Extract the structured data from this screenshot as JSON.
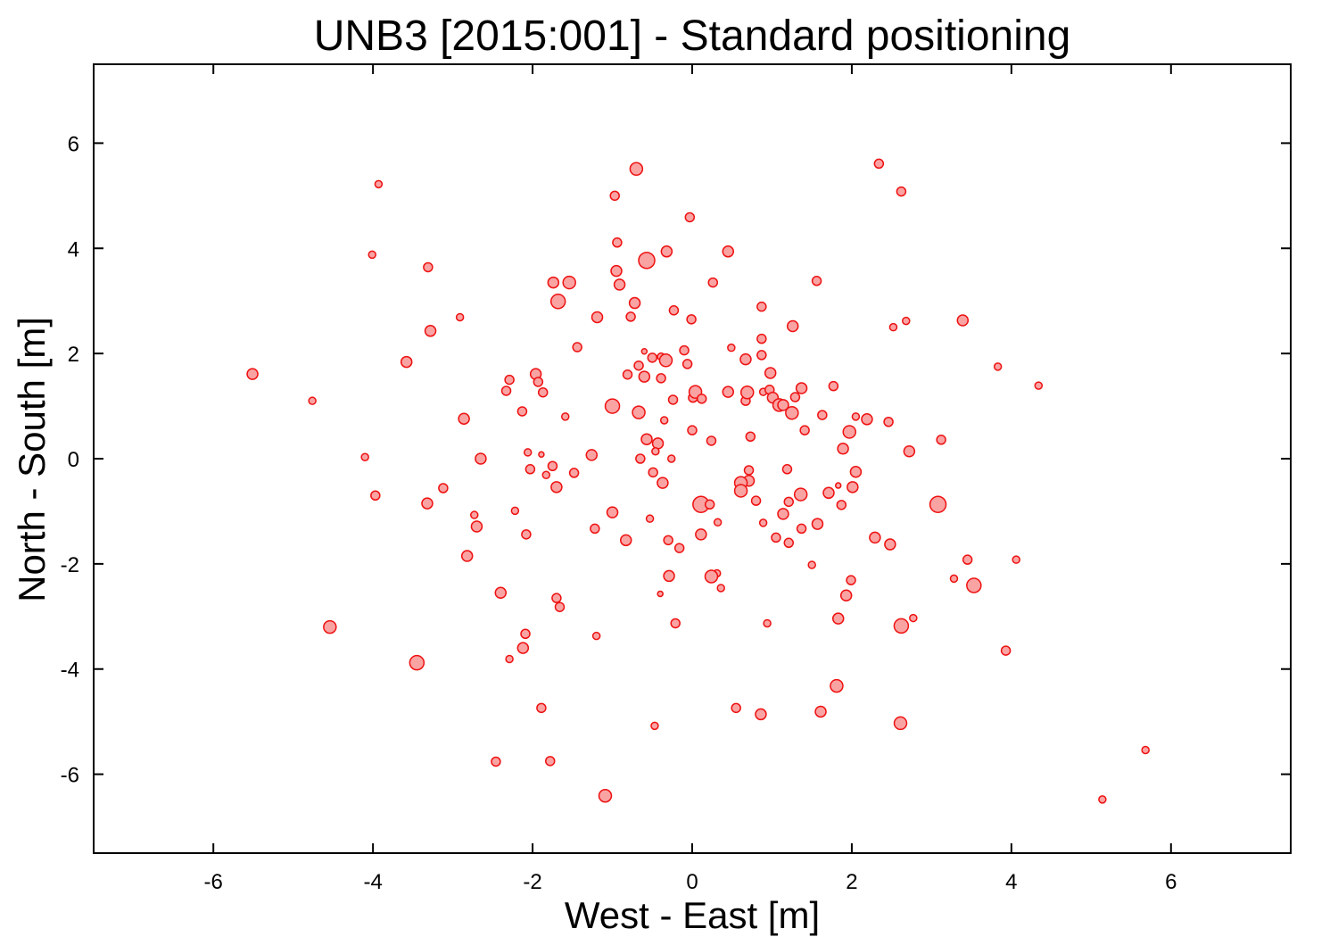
{
  "chart_data": {
    "type": "scatter",
    "title": "UNB3 [2015:001] - Standard positioning",
    "x_label": "West - East [m]",
    "y_label": "North - South [m]",
    "xlim": [
      -7.5,
      7.5
    ],
    "ylim": [
      -7.5,
      7.5
    ],
    "xticks": [
      -6,
      -4,
      -2,
      0,
      2,
      4,
      6
    ],
    "yticks": [
      -6,
      -4,
      -2,
      0,
      2,
      4,
      6
    ],
    "color": "#f9a3a3",
    "edge_color": "#ee1111",
    "x": [
      -5.51,
      -4.76,
      -3.93,
      -4.01,
      -4.1,
      -3.97,
      -4.54,
      -3.45,
      -3.31,
      -3.28,
      -3.58,
      -2.91,
      -2.86,
      -2.65,
      -3.32,
      -3.12,
      -2.73,
      -2.7,
      -2.82,
      -2.4,
      -2.29,
      -2.33,
      -2.13,
      -1.96,
      -1.93,
      -1.87,
      -2.06,
      -1.89,
      -2.03,
      -1.83,
      -1.75,
      -1.7,
      -2.22,
      -2.08,
      -1.59,
      -1.48,
      -1.26,
      -1.22,
      -1.0,
      -0.83,
      -1.0,
      -0.67,
      -1.74,
      -1.54,
      -1.68,
      -1.44,
      -1.19,
      -0.97,
      -0.94,
      -0.95,
      -0.91,
      -0.7,
      -0.57,
      -0.72,
      -0.77,
      -0.81,
      -0.67,
      -0.6,
      -0.6,
      -0.5,
      -0.39,
      -0.32,
      -0.03,
      -0.23,
      -0.1,
      -0.06,
      -0.39,
      -0.33,
      -0.24,
      -0.35,
      -0.57,
      -0.43,
      -0.46,
      -0.65,
      -0.49,
      -0.37,
      -0.26,
      0.0,
      0.01,
      0.04,
      0.12,
      -0.01,
      0.26,
      0.45,
      0.49,
      0.67,
      0.45,
      0.67,
      0.69,
      0.73,
      0.24,
      0.71,
      0.71,
      0.61,
      0.61,
      0.8,
      0.11,
      0.22,
      0.32,
      0.11,
      -0.53,
      -0.3,
      -0.16,
      -0.29,
      -0.4,
      0.31,
      0.24,
      0.36,
      -0.21,
      -1.2,
      -1.7,
      -1.66,
      -2.09,
      -2.12,
      -2.29,
      -1.89,
      -0.47,
      -2.46,
      -1.78,
      -1.09,
      0.55,
      0.86,
      1.61,
      1.81,
      2.61,
      0.94,
      0.89,
      0.87,
      0.87,
      0.87,
      0.89,
      0.97,
      0.98,
      1.01,
      1.09,
      1.14,
      1.25,
      1.29,
      1.37,
      1.26,
      1.56,
      1.41,
      1.63,
      1.19,
      1.21,
      1.14,
      1.05,
      1.21,
      1.37,
      1.36,
      1.57,
      1.5,
      1.71,
      1.83,
      1.87,
      1.77,
      1.89,
      1.97,
      2.05,
      2.19,
      2.05,
      2.01,
      2.29,
      2.48,
      1.99,
      1.93,
      1.83,
      2.62,
      2.77,
      2.34,
      2.62,
      2.52,
      2.68,
      2.46,
      2.72,
      3.39,
      3.12,
      3.08,
      3.28,
      3.45,
      3.53,
      3.83,
      4.34,
      4.06,
      3.93,
      5.68,
      5.14
    ],
    "y": [
      1.61,
      1.1,
      5.22,
      3.88,
      0.03,
      -0.7,
      -3.2,
      -3.88,
      3.64,
      2.43,
      1.84,
      2.69,
      0.76,
      0.0,
      -0.85,
      -0.56,
      -1.07,
      -1.29,
      -1.85,
      -2.55,
      1.5,
      1.29,
      0.9,
      1.61,
      1.46,
      1.26,
      0.12,
      0.08,
      -0.2,
      -0.31,
      -0.14,
      -0.54,
      -0.99,
      -1.44,
      0.8,
      -0.27,
      0.07,
      -1.33,
      -1.02,
      -1.55,
      1.0,
      0.88,
      3.35,
      3.35,
      2.99,
      2.12,
      2.69,
      5.0,
      4.11,
      3.57,
      3.31,
      5.51,
      3.77,
      2.96,
      2.7,
      1.6,
      1.77,
      1.56,
      2.04,
      1.92,
      1.94,
      3.94,
      4.59,
      2.82,
      2.06,
      1.8,
      1.53,
      1.87,
      1.12,
      0.73,
      0.37,
      0.29,
      0.14,
      0.0,
      -0.26,
      -0.46,
      0.0,
      0.54,
      1.16,
      1.27,
      1.14,
      2.65,
      3.35,
      3.94,
      2.11,
      1.89,
      1.27,
      1.1,
      1.26,
      0.42,
      0.34,
      -0.22,
      -0.42,
      -0.46,
      -0.61,
      -0.8,
      -0.87,
      -0.87,
      -1.21,
      -1.44,
      -1.14,
      -1.55,
      -1.7,
      -2.23,
      -2.57,
      -2.18,
      -2.24,
      -2.46,
      -3.13,
      -3.37,
      -2.65,
      -2.82,
      -3.33,
      -3.6,
      -3.81,
      -4.74,
      -5.08,
      -5.76,
      -5.75,
      -6.41,
      -4.74,
      -4.86,
      -4.81,
      -4.32,
      -5.03,
      -3.13,
      -1.22,
      2.89,
      2.28,
      1.97,
      1.27,
      1.31,
      1.63,
      1.16,
      1.02,
      1.02,
      0.87,
      1.17,
      1.34,
      2.52,
      3.38,
      0.54,
      0.83,
      -0.2,
      -0.82,
      -1.05,
      -1.5,
      -1.6,
      -1.33,
      -0.68,
      -1.24,
      -2.02,
      -0.65,
      -0.51,
      -0.88,
      1.38,
      0.19,
      0.51,
      0.8,
      0.75,
      -0.25,
      -0.54,
      -1.5,
      -1.63,
      -2.31,
      -2.6,
      -3.04,
      -3.18,
      -3.03,
      5.61,
      5.08,
      2.5,
      2.62,
      0.7,
      0.14,
      2.63,
      0.36,
      -0.87,
      -2.28,
      -1.92,
      -2.41,
      1.75,
      1.39,
      -1.92,
      -3.65,
      -5.54,
      -6.48
    ],
    "sizes": [
      6,
      4,
      4,
      4,
      4,
      5,
      7,
      8,
      5,
      6,
      6,
      4,
      6,
      6,
      6,
      5,
      4,
      6,
      6,
      6,
      5,
      5,
      5,
      6,
      5,
      5,
      4,
      3,
      5,
      4,
      5,
      6,
      4,
      5,
      4,
      5,
      6,
      5,
      6,
      6,
      8,
      7,
      6,
      7,
      8,
      5,
      6,
      5,
      5,
      6,
      6,
      7,
      9,
      6,
      5,
      5,
      5,
      6,
      3,
      5,
      4,
      6,
      5,
      5,
      5,
      5,
      5,
      7,
      5,
      4,
      6,
      6,
      4,
      5,
      5,
      6,
      4,
      5,
      5,
      7,
      5,
      5,
      5,
      6,
      4,
      6,
      6,
      5,
      7,
      5,
      5,
      5,
      6,
      7,
      7,
      5,
      9,
      5,
      4,
      6,
      4,
      5,
      5,
      6,
      3,
      4,
      7,
      4,
      5,
      4,
      5,
      5,
      5,
      6,
      4,
      5,
      4,
      5,
      5,
      7,
      5,
      6,
      6,
      7,
      7,
      4,
      4,
      5,
      5,
      5,
      4,
      5,
      6,
      6,
      7,
      6,
      7,
      5,
      6,
      6,
      5,
      5,
      5,
      5,
      5,
      6,
      5,
      5,
      5,
      7,
      6,
      4,
      6,
      3,
      5,
      5,
      6,
      7,
      4,
      6,
      6,
      6,
      6,
      6,
      5,
      6,
      6,
      8,
      4,
      5,
      5,
      4,
      4,
      5,
      6,
      6,
      5,
      9,
      4,
      5,
      8,
      4,
      4,
      4,
      5,
      4,
      4
    ]
  }
}
